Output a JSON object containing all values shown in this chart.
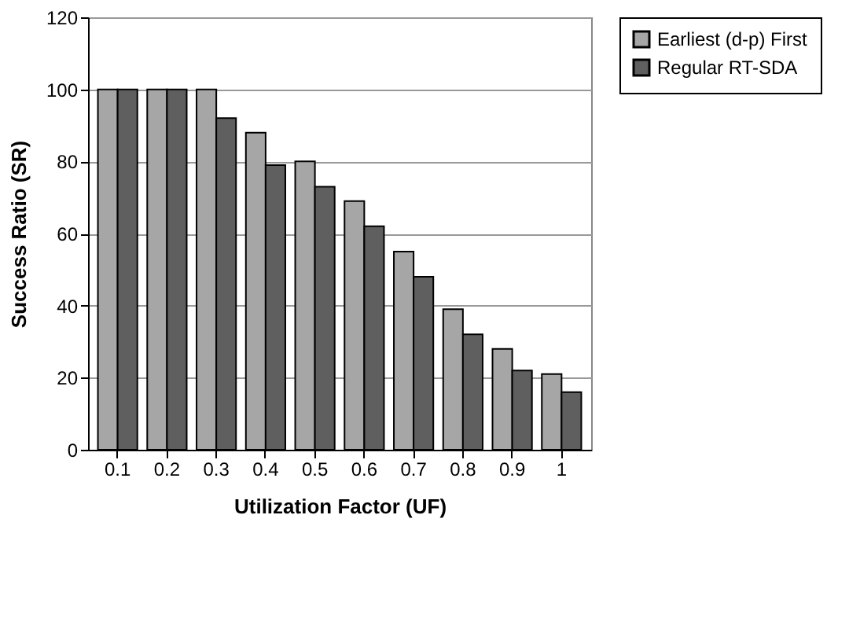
{
  "chart_data": {
    "type": "bar",
    "xlabel": "Utilization Factor (UF)",
    "ylabel": "Success Ratio (SR)",
    "categories": [
      "0.1",
      "0.2",
      "0.3",
      "0.4",
      "0.5",
      "0.6",
      "0.7",
      "0.8",
      "0.9",
      "1"
    ],
    "series": [
      {
        "name": "Earliest (d-p) First",
        "color": "#a6a6a6",
        "values": [
          100,
          100,
          100,
          88,
          80,
          69,
          55,
          39,
          28,
          21
        ]
      },
      {
        "name": "Regular RT-SDA",
        "color": "#5f5f5f",
        "values": [
          100,
          100,
          92,
          79,
          73,
          62,
          48,
          32,
          22,
          16
        ]
      }
    ],
    "ylim": [
      0,
      120
    ],
    "yticks": [
      0,
      20,
      40,
      60,
      80,
      100,
      120
    ],
    "grid": "y",
    "legend": "right"
  }
}
